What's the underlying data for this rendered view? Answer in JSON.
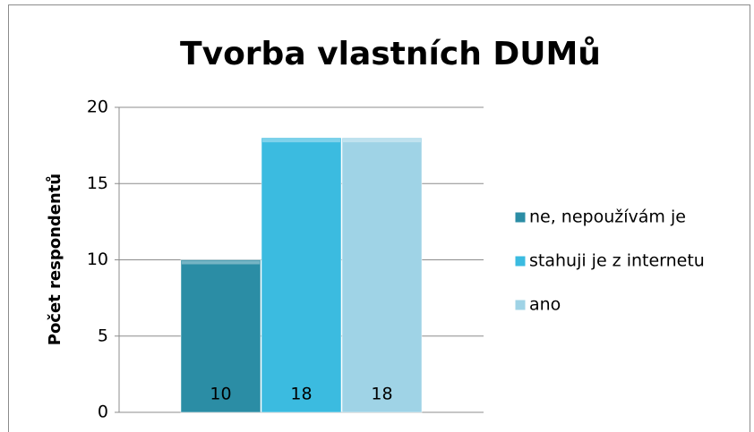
{
  "chart_data": {
    "type": "bar",
    "title": "Tvorba vlastních DUMů",
    "y_label": "Počet respondentů",
    "categories": [
      null
    ],
    "series": [
      {
        "name": "ne, nepoužívám je",
        "color": "#2b8da5",
        "values": [
          10
        ]
      },
      {
        "name": "stahuji je z internetu",
        "color": "#3bbbe0",
        "values": [
          18
        ]
      },
      {
        "name": "ano",
        "color": "#9fd3e6",
        "values": [
          18
        ]
      }
    ],
    "ylim": [
      0,
      20
    ],
    "yticks": [
      0,
      5,
      10,
      15,
      20
    ],
    "grid": true,
    "legend": "right"
  }
}
